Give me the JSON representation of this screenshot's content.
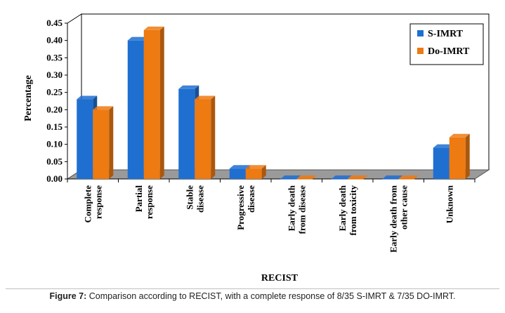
{
  "chart_data": {
    "type": "bar",
    "title": "",
    "xlabel": "RECIST",
    "ylabel": "Percentage",
    "ylim": [
      0,
      0.45
    ],
    "yticks": [
      "0.00",
      "0.05",
      "0.10",
      "0.15",
      "0.20",
      "0.25",
      "0.30",
      "0.35",
      "0.40",
      "0.45"
    ],
    "categories": [
      [
        "Complete",
        "response"
      ],
      [
        "Partial",
        "response"
      ],
      [
        "Stable",
        "disease"
      ],
      [
        "Progressive",
        "disease"
      ],
      [
        "Early death",
        "from disease"
      ],
      [
        "Early death",
        "from toxicity"
      ],
      [
        "Early death from",
        "other cause"
      ],
      [
        "Unknown"
      ]
    ],
    "series": [
      {
        "name": "S-IMRT",
        "color": "#1f6fd1",
        "values": [
          0.23,
          0.4,
          0.26,
          0.03,
          0.0,
          0.0,
          0.0,
          0.09
        ]
      },
      {
        "name": "Do-IMRT",
        "color": "#ee7a12",
        "values": [
          0.2,
          0.43,
          0.23,
          0.03,
          0.0,
          0.0,
          0.0,
          0.12
        ]
      }
    ],
    "legend": "top-right",
    "style": "3d"
  },
  "caption": {
    "label": "Figure 7:",
    "text": " Comparison according to RECIST, with a complete response of 8/35 S-IMRT & 7/35 DO-IMRT."
  }
}
